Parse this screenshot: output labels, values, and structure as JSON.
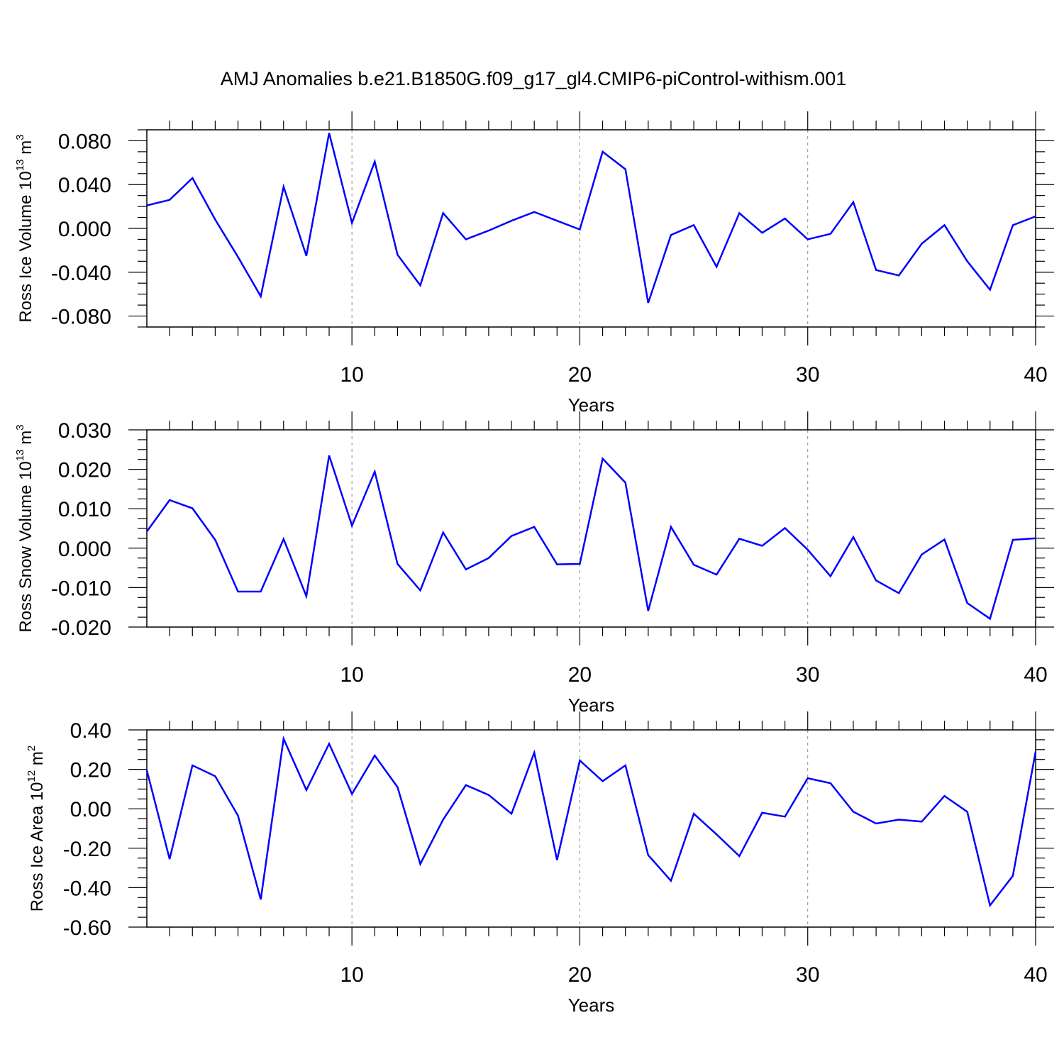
{
  "title": "AMJ Anomalies b.e21.B1850G.f09_g17_gl4.CMIP6-piControl-withism.001",
  "colors": {
    "line": "#0000ff",
    "axis": "#000000",
    "grid": "#888888",
    "background": "#ffffff"
  },
  "chart_data": [
    {
      "type": "line",
      "ylabel": {
        "prefix": "Ross Ice Volume 10",
        "exponent": "13",
        "unit": " m",
        "unit_exponent": "3"
      },
      "xlabel": "Years",
      "xlim": [
        1,
        40
      ],
      "ylim": [
        -0.09,
        0.09
      ],
      "xticks": [
        10,
        20,
        30,
        40
      ],
      "yticks": [
        -0.08,
        -0.04,
        0.0,
        0.04,
        0.08
      ],
      "ytick_labels": [
        "-0.080",
        "-0.040",
        "0.000",
        "0.040",
        "0.080"
      ],
      "grid": "dashed vertical lines at major x ticks",
      "x": [
        1,
        2,
        3,
        4,
        5,
        6,
        7,
        8,
        9,
        10,
        11,
        12,
        13,
        14,
        15,
        16,
        17,
        18,
        19,
        20,
        21,
        22,
        23,
        24,
        25,
        26,
        27,
        28,
        29,
        30,
        31,
        32,
        33,
        34,
        35,
        36,
        37,
        38,
        39,
        40
      ],
      "series": [
        {
          "values": [
            0.021,
            0.026,
            0.046,
            0.008,
            -0.026,
            -0.062,
            0.038,
            -0.025,
            0.087,
            0.005,
            0.061,
            -0.024,
            -0.052,
            0.014,
            -0.01,
            -0.002,
            0.007,
            0.015,
            0.007,
            -0.001,
            0.07,
            0.054,
            -0.068,
            -0.006,
            0.003,
            -0.035,
            0.014,
            -0.004,
            0.009,
            -0.01,
            -0.005,
            0.024,
            -0.038,
            -0.043,
            -0.014,
            0.003,
            -0.03,
            -0.056,
            0.003,
            0.011
          ]
        }
      ]
    },
    {
      "type": "line",
      "ylabel": {
        "prefix": "Ross Snow Volume 10",
        "exponent": "13",
        "unit": " m",
        "unit_exponent": "3"
      },
      "xlabel": "Years",
      "xlim": [
        1,
        40
      ],
      "ylim": [
        -0.02,
        0.03
      ],
      "xticks": [
        10,
        20,
        30,
        40
      ],
      "yticks": [
        -0.02,
        -0.01,
        0.0,
        0.01,
        0.02,
        0.03
      ],
      "ytick_labels": [
        "-0.020",
        "-0.010",
        "0.000",
        "0.010",
        "0.020",
        "0.030"
      ],
      "grid": "dashed vertical lines at major x ticks",
      "x": [
        1,
        2,
        3,
        4,
        5,
        6,
        7,
        8,
        9,
        10,
        11,
        12,
        13,
        14,
        15,
        16,
        17,
        18,
        19,
        20,
        21,
        22,
        23,
        24,
        25,
        26,
        27,
        28,
        29,
        30,
        31,
        32,
        33,
        34,
        35,
        36,
        37,
        38,
        39,
        40
      ],
      "series": [
        {
          "values": [
            0.0042,
            0.0122,
            0.0101,
            0.0021,
            -0.011,
            -0.011,
            0.0023,
            -0.0122,
            0.0235,
            0.0057,
            0.0194,
            -0.004,
            -0.0107,
            0.004,
            -0.0054,
            -0.0025,
            0.0031,
            0.0054,
            -0.0041,
            -0.004,
            0.0227,
            0.0166,
            -0.0159,
            0.0054,
            -0.0042,
            -0.0067,
            0.0024,
            0.0006,
            0.0051,
            -0.0004,
            -0.0071,
            0.0028,
            -0.0082,
            -0.0114,
            -0.0016,
            0.0022,
            -0.0139,
            -0.0179,
            0.0021,
            0.0025
          ]
        }
      ]
    },
    {
      "type": "line",
      "ylabel": {
        "prefix": "Ross Ice Area 10",
        "exponent": "12",
        "unit": " m",
        "unit_exponent": "2"
      },
      "xlabel": "Years",
      "xlim": [
        1,
        40
      ],
      "ylim": [
        -0.6,
        0.4
      ],
      "xticks": [
        10,
        20,
        30,
        40
      ],
      "yticks": [
        -0.6,
        -0.4,
        -0.2,
        0.0,
        0.2,
        0.4
      ],
      "ytick_labels": [
        "-0.60",
        "-0.40",
        "-0.20",
        "0.00",
        "0.20",
        "0.40"
      ],
      "grid": "dashed vertical lines at major x ticks",
      "x": [
        1,
        2,
        3,
        4,
        5,
        6,
        7,
        8,
        9,
        10,
        11,
        12,
        13,
        14,
        15,
        16,
        17,
        18,
        19,
        20,
        21,
        22,
        23,
        24,
        25,
        26,
        27,
        28,
        29,
        30,
        31,
        32,
        33,
        34,
        35,
        36,
        37,
        38,
        39,
        40
      ],
      "series": [
        {
          "values": [
            0.195,
            -0.255,
            0.22,
            0.165,
            -0.035,
            -0.46,
            0.355,
            0.095,
            0.33,
            0.075,
            0.27,
            0.11,
            -0.28,
            -0.055,
            0.12,
            0.07,
            -0.025,
            0.285,
            -0.26,
            0.245,
            0.14,
            0.22,
            -0.235,
            -0.365,
            -0.025,
            -0.13,
            -0.24,
            -0.02,
            -0.04,
            0.155,
            0.13,
            -0.015,
            -0.075,
            -0.055,
            -0.065,
            0.065,
            -0.015,
            -0.49,
            -0.34,
            0.29
          ]
        }
      ]
    }
  ]
}
